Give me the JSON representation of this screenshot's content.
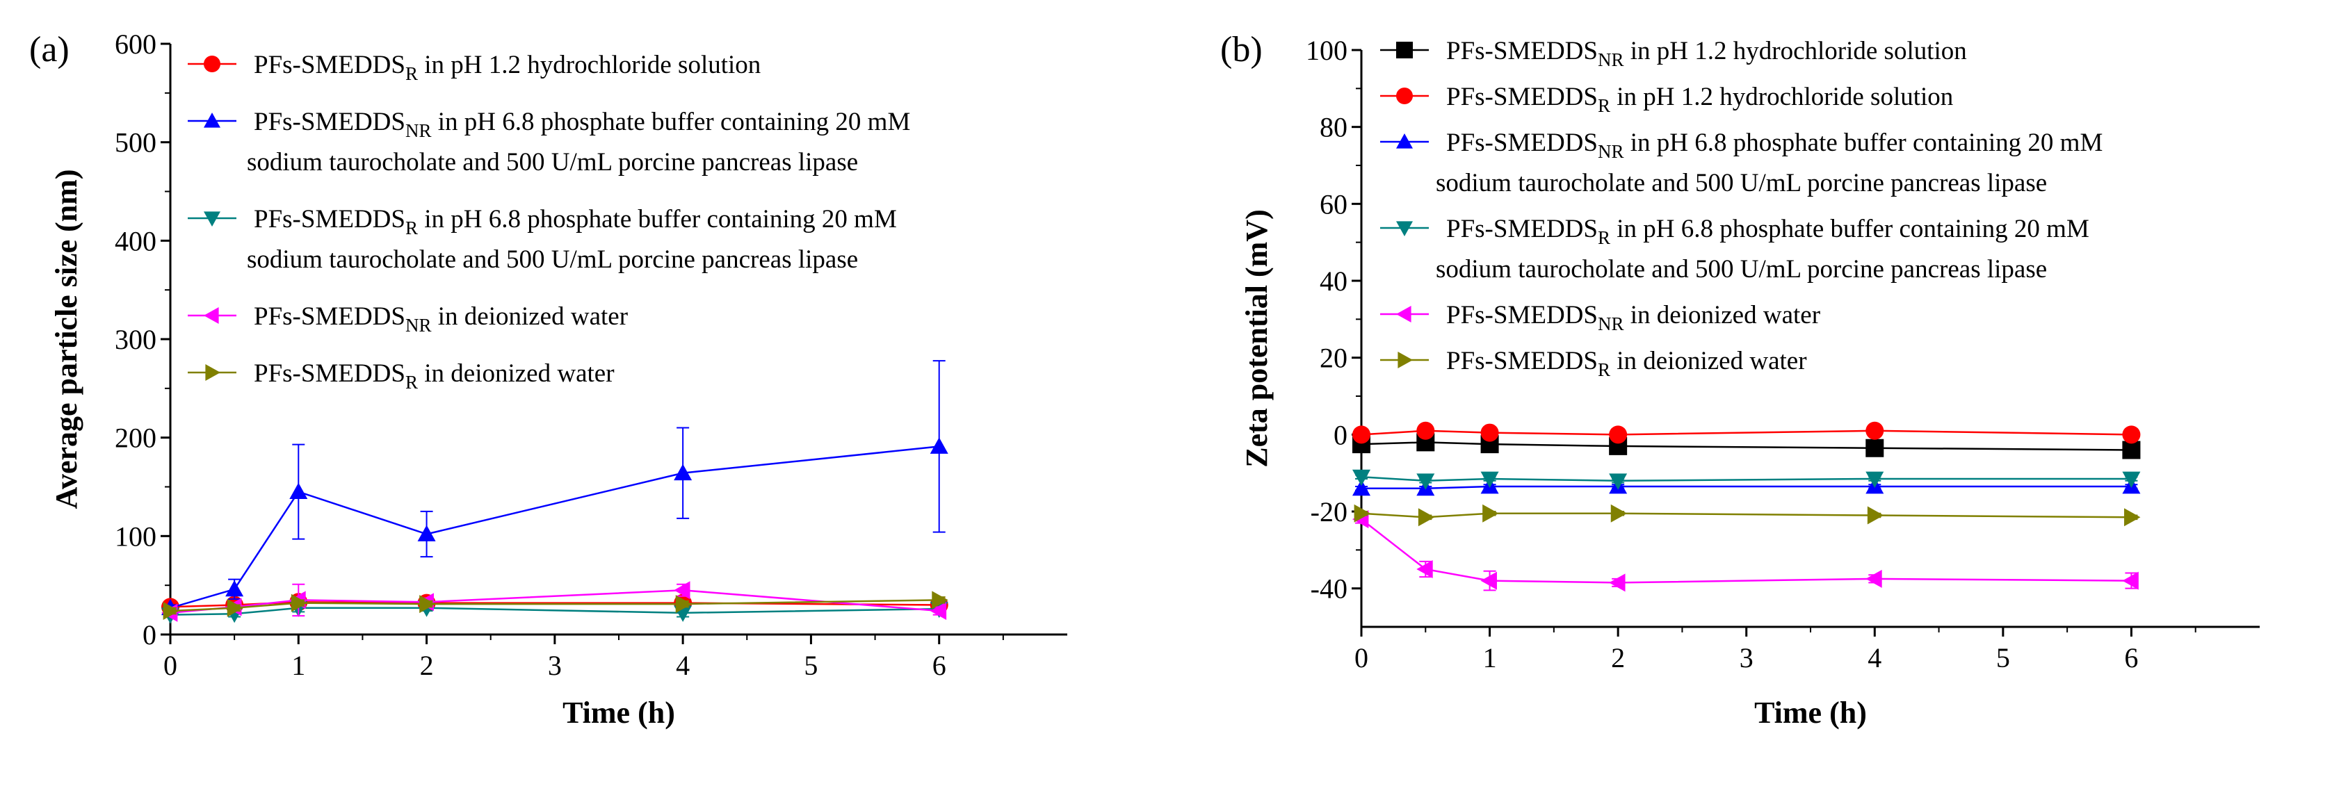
{
  "chart_data": [
    {
      "panel_label": "(a)",
      "type": "line",
      "xlabel": "Time (h)",
      "ylabel": "Average particle size (nm)",
      "xlim": [
        0,
        7
      ],
      "ylim": [
        0,
        600
      ],
      "xticks": [
        "0",
        "1",
        "2",
        "3",
        "4",
        "5",
        "6"
      ],
      "yticks": [
        "0",
        "100",
        "200",
        "300",
        "400",
        "500",
        "600"
      ],
      "x": [
        0,
        0.5,
        1,
        2,
        4,
        6
      ],
      "series": [
        {
          "legend_prefix": "PFs-SMEDDS",
          "legend_sub": "R",
          "legend_suffix": " in pH 1.2 hydrochloride solution",
          "legend_line2": "",
          "color": "#ff0000",
          "marker": "circle",
          "values": [
            28,
            30,
            33,
            32,
            32,
            30
          ],
          "errors": [
            3,
            3,
            4,
            3,
            3,
            3
          ]
        },
        {
          "legend_prefix": "PFs-SMEDDS",
          "legend_sub": "NR",
          "legend_suffix": " in pH 6.8 phosphate buffer containing 20 mM",
          "legend_line2": "sodium taurocholate and 500 U/mL porcine pancreas lipase",
          "color": "#0000ff",
          "marker": "triangle-up",
          "values": [
            27,
            46,
            145,
            102,
            164,
            191
          ],
          "errors": [
            3,
            10,
            48,
            23,
            46,
            87
          ]
        },
        {
          "legend_prefix": "PFs-SMEDDS",
          "legend_sub": "R",
          "legend_suffix": " in pH 6.8 phosphate buffer containing 20 mM",
          "legend_line2": "sodium taurocholate and 500 U/mL porcine pancreas lipase",
          "color": "#008080",
          "marker": "triangle-down",
          "values": [
            20,
            21,
            27,
            27,
            22,
            26
          ],
          "errors": [
            2,
            3,
            4,
            3,
            4,
            3
          ]
        },
        {
          "legend_prefix": "PFs-SMEDDS",
          "legend_sub": "NR",
          "legend_suffix": " in deionized water",
          "legend_line2": "",
          "color": "#ff00ff",
          "marker": "triangle-left",
          "values": [
            22,
            28,
            35,
            33,
            45,
            24
          ],
          "errors": [
            3,
            4,
            16,
            4,
            6,
            4
          ]
        },
        {
          "legend_prefix": "PFs-SMEDDS",
          "legend_sub": "R",
          "legend_suffix": " in deionized water",
          "legend_line2": "",
          "color": "#808000",
          "marker": "triangle-right",
          "values": [
            24,
            27,
            32,
            31,
            31,
            35
          ],
          "errors": [
            3,
            3,
            3,
            3,
            3,
            3
          ]
        }
      ]
    },
    {
      "panel_label": "(b)",
      "type": "line",
      "xlabel": "Time (h)",
      "ylabel": "Zeta potential (mV)",
      "xlim": [
        0,
        7
      ],
      "ylim": [
        -50,
        100
      ],
      "xticks": [
        "0",
        "1",
        "2",
        "3",
        "4",
        "5",
        "6"
      ],
      "yticks": [
        "-40",
        "-20",
        "0",
        "20",
        "40",
        "60",
        "80",
        "100"
      ],
      "x": [
        0,
        0.5,
        1,
        2,
        4,
        6
      ],
      "series": [
        {
          "legend_prefix": "PFs-SMEDDS",
          "legend_sub": "NR",
          "legend_suffix": " in pH 1.2 hydrochloride solution",
          "legend_line2": "",
          "color": "#000000",
          "marker": "square",
          "values": [
            -2.5,
            -2,
            -2.5,
            -3,
            -3.5,
            -4
          ],
          "errors": [
            0.5,
            0.5,
            0.5,
            0.5,
            0.5,
            0.5
          ]
        },
        {
          "legend_prefix": "PFs-SMEDDS",
          "legend_sub": "R",
          "legend_suffix": " in pH 1.2 hydrochloride solution",
          "legend_line2": "",
          "color": "#ff0000",
          "marker": "circle",
          "values": [
            0,
            1,
            0.5,
            0,
            1,
            0
          ],
          "errors": [
            0.5,
            0.5,
            0.5,
            0.5,
            0.5,
            0.5
          ]
        },
        {
          "legend_prefix": "PFs-SMEDDS",
          "legend_sub": "NR",
          "legend_suffix": " in pH 6.8 phosphate buffer containing 20 mM",
          "legend_line2": "sodium taurocholate and 500 U/mL porcine pancreas lipase",
          "color": "#0000ff",
          "marker": "triangle-up",
          "values": [
            -14,
            -14,
            -13.5,
            -13.5,
            -13.5,
            -13.5
          ],
          "errors": [
            0.5,
            0.5,
            0.5,
            0.5,
            0.5,
            0.5
          ]
        },
        {
          "legend_prefix": "PFs-SMEDDS",
          "legend_sub": "R",
          "legend_suffix": " in pH 6.8 phosphate buffer containing 20 mM",
          "legend_line2": "sodium taurocholate and 500 U/mL porcine pancreas lipase",
          "color": "#008080",
          "marker": "triangle-down",
          "values": [
            -11,
            -12,
            -11.5,
            -12,
            -11.5,
            -11.5
          ],
          "errors": [
            0.5,
            0.5,
            0.5,
            0.5,
            0.5,
            0.5
          ]
        },
        {
          "legend_prefix": "PFs-SMEDDS",
          "legend_sub": "NR",
          "legend_suffix": " in deionized water",
          "legend_line2": "",
          "color": "#ff00ff",
          "marker": "triangle-left",
          "values": [
            -22,
            -35,
            -38,
            -38.5,
            -37.5,
            -38
          ],
          "errors": [
            1,
            2,
            2.5,
            1,
            1,
            2
          ]
        },
        {
          "legend_prefix": "PFs-SMEDDS",
          "legend_sub": "R",
          "legend_suffix": " in deionized water",
          "legend_line2": "",
          "color": "#808000",
          "marker": "triangle-right",
          "values": [
            -20.5,
            -21.5,
            -20.5,
            -20.5,
            -21,
            -21.5
          ],
          "errors": [
            0.5,
            0.5,
            0.5,
            0.5,
            0.5,
            0.5
          ]
        }
      ]
    }
  ]
}
